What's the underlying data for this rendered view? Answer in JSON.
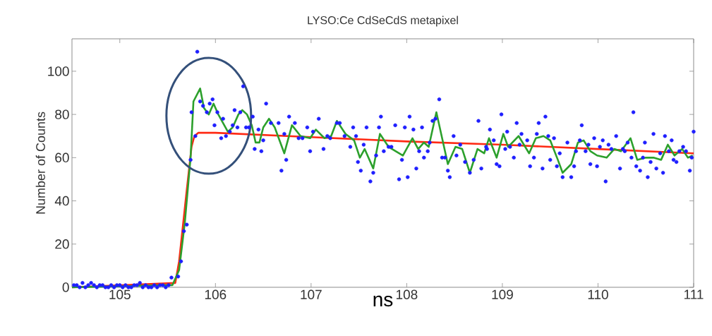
{
  "chart_data": {
    "type": "scatter",
    "title": "LYSO:Ce CdSeCdS metapixel",
    "xlabel": "ns",
    "ylabel": "Number of Counts",
    "xlim": [
      104.5,
      111
    ],
    "ylim": [
      0,
      115
    ],
    "xticks": [
      105,
      106,
      107,
      108,
      109,
      110,
      111
    ],
    "yticks": [
      0,
      20,
      40,
      60,
      80,
      100
    ],
    "series": [
      {
        "type": "line",
        "color": "#ff2a14",
        "marker": "none",
        "x": [
          104.5,
          105.58,
          105.62,
          105.7,
          105.75,
          105.78,
          105.82,
          106,
          107,
          108,
          109,
          110,
          111
        ],
        "values": [
          0,
          2,
          12,
          45,
          65,
          70,
          71.5,
          71.5,
          69.5,
          67.5,
          66,
          64,
          62
        ]
      },
      {
        "type": "line",
        "color": "#2ca02c",
        "marker": "none",
        "x": [
          104.5,
          105.55,
          105.62,
          105.68,
          105.74,
          105.77,
          105.84,
          105.88,
          105.93,
          105.98,
          106.03,
          106.08,
          106.13,
          106.18,
          106.24,
          106.28,
          106.33,
          106.38,
          106.42,
          106.46,
          106.5,
          106.56,
          106.62,
          106.72,
          106.8,
          106.89,
          106.99,
          107.05,
          107.14,
          107.21,
          107.27,
          107.36,
          107.45,
          107.51,
          107.56,
          107.65,
          107.72,
          107.81,
          107.96,
          108.06,
          108.12,
          108.18,
          108.23,
          108.31,
          108.43,
          108.51,
          108.58,
          108.66,
          108.74,
          108.81,
          108.86,
          108.94,
          109.01,
          109.06,
          109.17,
          109.28,
          109.35,
          109.43,
          109.5,
          109.58,
          109.63,
          109.72,
          109.79,
          109.85,
          109.92,
          109.99,
          110.09,
          110.17,
          110.24,
          110.34,
          110.41,
          110.5,
          110.58,
          110.66,
          110.73,
          110.8,
          110.88,
          110.94,
          110.99
        ],
        "values": [
          0,
          1,
          8,
          30,
          60,
          86,
          92,
          83,
          80,
          85,
          80,
          76,
          72,
          74,
          80,
          82,
          80,
          75,
          67,
          67,
          74,
          78,
          74,
          62,
          75,
          70,
          69,
          73,
          69,
          70,
          77,
          71,
          68,
          60,
          64,
          55,
          71,
          65,
          61,
          69,
          64,
          67,
          65,
          81,
          57,
          65,
          64,
          53,
          64,
          62,
          69,
          60,
          71,
          65,
          70,
          62,
          69,
          70,
          68,
          59,
          53,
          57,
          67,
          68,
          63,
          61,
          60,
          64,
          63,
          69,
          59,
          60,
          60,
          59,
          66,
          61,
          64,
          60,
          61
        ]
      },
      {
        "type": "scatter",
        "color": "#1f1fff",
        "marker": "circle",
        "x": [
          104.52,
          104.55,
          104.58,
          104.61,
          104.64,
          104.67,
          104.7,
          104.73,
          104.76,
          104.79,
          104.82,
          104.85,
          104.88,
          104.91,
          104.94,
          104.97,
          105.0,
          105.03,
          105.06,
          105.09,
          105.12,
          105.15,
          105.18,
          105.21,
          105.24,
          105.27,
          105.3,
          105.33,
          105.36,
          105.39,
          105.42,
          105.45,
          105.48,
          105.51,
          105.54,
          105.61,
          105.64,
          105.67,
          105.7,
          105.74,
          105.75,
          105.79,
          105.81,
          105.84,
          105.87,
          105.91,
          105.94,
          105.97,
          105.99,
          106.02,
          106.06,
          106.08,
          106.11,
          106.15,
          106.18,
          106.2,
          106.23,
          106.26,
          106.29,
          106.32,
          106.35,
          106.39,
          106.41,
          106.45,
          106.48,
          106.5,
          106.53,
          106.58,
          106.66,
          106.69,
          106.72,
          106.74,
          106.77,
          106.83,
          106.87,
          106.91,
          106.96,
          106.99,
          107.02,
          107.08,
          107.13,
          107.17,
          107.2,
          107.27,
          107.3,
          107.35,
          107.41,
          107.44,
          107.47,
          107.49,
          107.52,
          107.55,
          107.58,
          107.62,
          107.65,
          107.68,
          107.71,
          107.73,
          107.76,
          107.81,
          107.84,
          107.88,
          107.92,
          107.95,
          107.98,
          108.01,
          108.03,
          108.07,
          108.1,
          108.13,
          108.16,
          108.18,
          108.22,
          108.24,
          108.27,
          108.3,
          108.34,
          108.37,
          108.4,
          108.43,
          108.45,
          108.49,
          108.52,
          108.56,
          108.61,
          108.66,
          108.7,
          108.75,
          108.78,
          108.83,
          108.84,
          108.87,
          108.91,
          108.94,
          108.97,
          108.99,
          109.03,
          109.05,
          109.08,
          109.12,
          109.15,
          109.18,
          109.2,
          109.26,
          109.29,
          109.33,
          109.36,
          109.38,
          109.42,
          109.45,
          109.48,
          109.5,
          109.54,
          109.57,
          109.6,
          109.63,
          109.68,
          109.72,
          109.75,
          109.77,
          109.81,
          109.83,
          109.87,
          109.9,
          109.92,
          109.96,
          109.99,
          110.02,
          110.05,
          110.08,
          110.11,
          110.14,
          110.19,
          110.23,
          110.26,
          110.28,
          110.31,
          110.35,
          110.37,
          110.4,
          110.44,
          110.47,
          110.49,
          110.52,
          110.55,
          110.58,
          110.61,
          110.65,
          110.68,
          110.7,
          110.74,
          110.77,
          110.79,
          110.82,
          110.85,
          110.89,
          110.92,
          110.96,
          110.98,
          111.0
        ],
        "values": [
          1,
          1,
          0,
          2,
          0,
          1,
          2,
          1,
          0,
          1,
          1,
          0,
          0,
          1,
          0,
          1,
          1,
          0,
          1,
          0,
          0,
          1,
          1,
          2,
          0,
          1,
          0,
          0,
          1,
          0,
          1,
          1,
          0,
          1,
          4.5,
          5,
          12,
          26,
          29,
          59,
          81,
          70,
          109,
          86,
          84,
          81,
          85,
          87,
          75,
          81,
          69,
          78,
          70,
          72,
          75,
          82,
          74,
          81,
          93,
          74,
          74,
          79,
          64,
          73,
          63,
          68,
          85,
          76,
          76,
          54,
          71,
          59,
          79,
          76,
          69,
          69,
          74,
          63,
          72,
          78,
          64,
          70,
          69,
          76,
          76,
          70,
          65,
          74,
          70,
          58,
          54,
          66,
          74,
          49,
          53,
          61,
          74,
          79,
          63,
          65,
          65,
          75,
          50,
          59,
          74,
          51,
          79,
          73,
          55,
          63,
          74,
          60,
          63,
          67,
          77,
          78,
          87,
          60,
          60,
          54,
          51,
          70,
          61,
          66,
          58,
          53,
          59,
          77,
          55,
          65,
          64,
          73,
          68,
          57,
          56,
          80,
          64,
          72,
          65,
          60,
          76,
          66,
          71,
          68,
          56,
          60,
          71,
          76,
          55,
          79,
          70,
          59,
          69,
          56,
          62,
          51,
          67,
          51,
          56,
          63,
          68,
          75,
          63,
          66,
          57,
          69,
          56,
          65,
          68,
          49,
          66,
          64,
          70,
          55,
          64,
          63,
          67,
          60,
          81,
          56,
          54,
          60,
          67,
          51,
          58,
          71,
          55,
          62,
          53,
          70,
          63,
          68,
          59,
          58,
          63,
          65,
          63,
          54,
          60,
          72
        ]
      }
    ]
  }
}
